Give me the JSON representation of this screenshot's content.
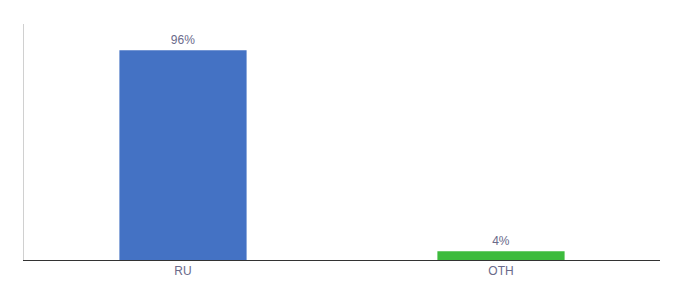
{
  "chart_data": {
    "type": "bar",
    "categories": [
      "RU",
      "OTH"
    ],
    "values": [
      96,
      4
    ],
    "value_labels": [
      "96%",
      "4%"
    ],
    "colors": [
      "#4472c4",
      "#3dbb3d"
    ],
    "ylim": [
      0,
      108
    ],
    "data_labels": true,
    "tick_labels": "x",
    "grid": false
  }
}
